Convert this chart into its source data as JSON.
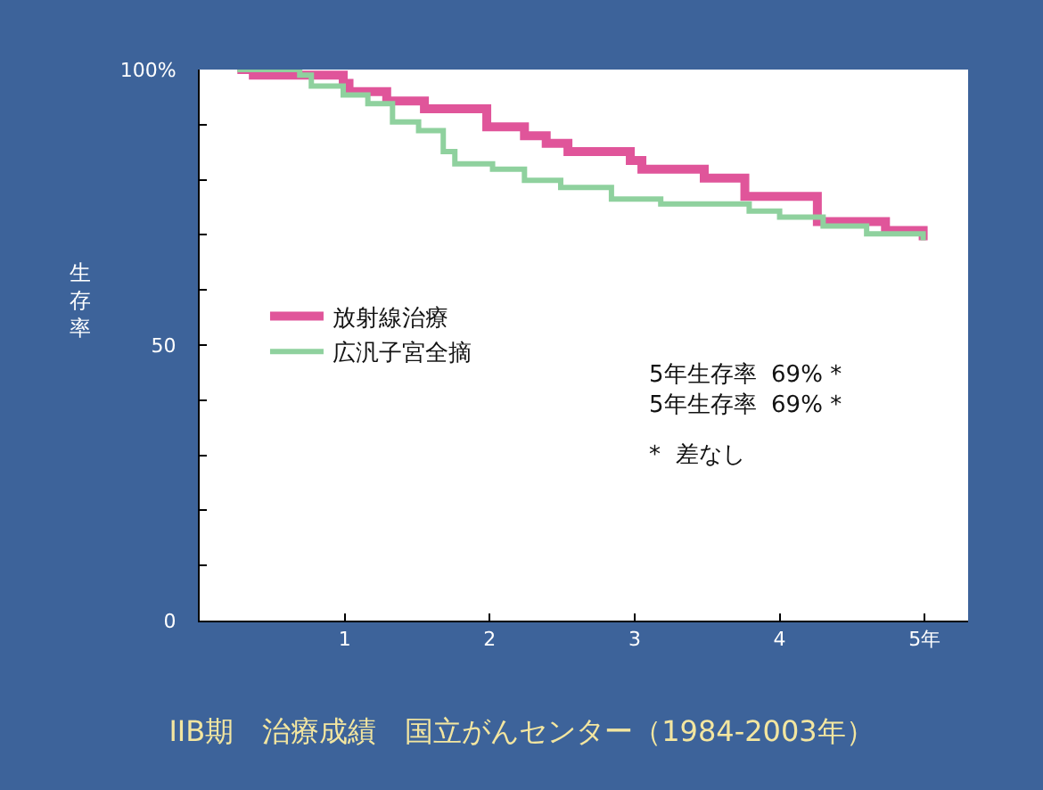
{
  "chart_data": {
    "type": "step",
    "title": "IIB期　治療成績　国立がんセンター（1984-2003年）",
    "ylabel": "生存率",
    "series": [
      {
        "name": "放射線治療",
        "color": "#e0559a",
        "x": [
          0.26,
          0.37,
          0.99,
          1.03,
          1.29,
          1.55,
          1.98,
          2.24,
          2.39,
          2.54,
          2.97,
          3.05,
          3.48,
          3.76,
          4.26,
          4.73,
          4.99
        ],
        "values": [
          100,
          99,
          97.5,
          96,
          94.3,
          92.9,
          89.6,
          88,
          86.6,
          85.1,
          83.5,
          81.9,
          80.3,
          77,
          72.4,
          70.8,
          69
        ]
      },
      {
        "name": "広汎子宮全摘",
        "color": "#8fd19e",
        "x": [
          0.26,
          0.69,
          0.77,
          0.99,
          1.16,
          1.33,
          1.51,
          1.68,
          1.76,
          2.02,
          2.24,
          2.49,
          2.84,
          3.18,
          3.79,
          4.0,
          4.3,
          4.6,
          4.99
        ],
        "values": [
          100,
          99,
          97,
          95.4,
          93.8,
          90.5,
          88.9,
          85.1,
          82.9,
          81.9,
          79.9,
          78.6,
          76.5,
          75.6,
          74.3,
          73.2,
          71.6,
          70.2,
          69
        ]
      }
    ],
    "annotations": [
      "5年生存率  69% *",
      "5年生存率  69% *",
      "*  差なし"
    ],
    "xlim": [
      0,
      5.3
    ],
    "ylim": [
      0,
      100
    ],
    "xticks": [
      1,
      2,
      3,
      4,
      {
        "value": 5,
        "label": "5年"
      }
    ],
    "yticks": [
      {
        "value": 0,
        "label": "0"
      },
      {
        "value": 10,
        "label": null
      },
      {
        "value": 20,
        "label": null
      },
      {
        "value": 30,
        "label": null
      },
      {
        "value": 40,
        "label": null
      },
      {
        "value": 50,
        "label": "50"
      },
      {
        "value": 60,
        "label": null
      },
      {
        "value": 70,
        "label": null
      },
      {
        "value": 80,
        "label": null
      },
      {
        "value": 90,
        "label": null
      },
      {
        "value": 100,
        "label": "100%"
      }
    ],
    "grid": false,
    "legend": "left",
    "marker": "none",
    "line_style": "solid"
  }
}
